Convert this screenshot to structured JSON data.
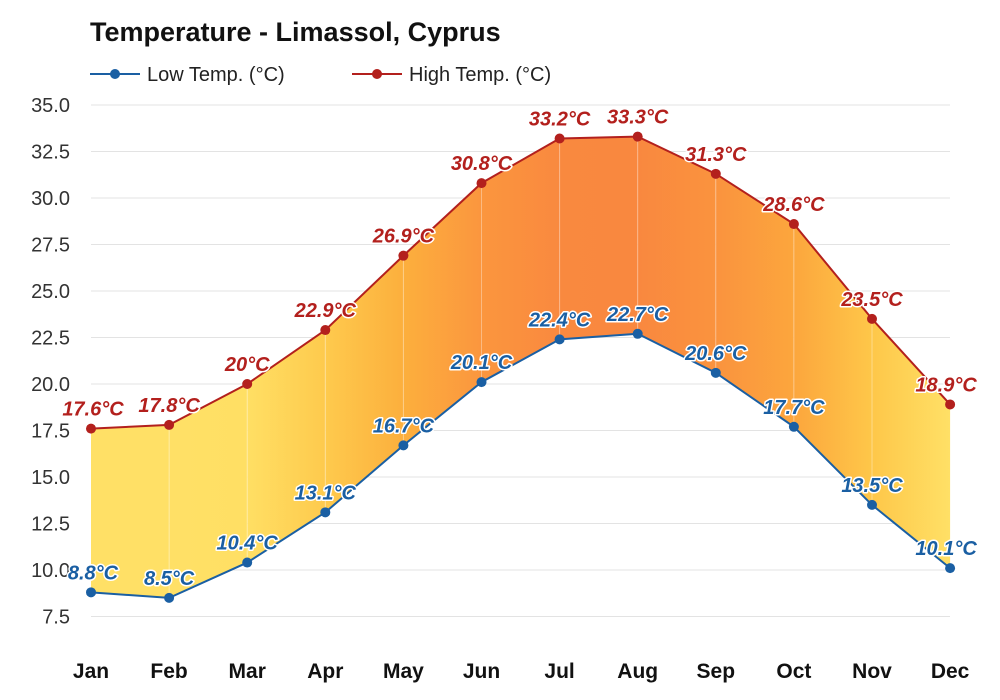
{
  "chart_data": {
    "type": "area",
    "title": "Temperature - Limassol, Cyprus",
    "categories": [
      "Jan",
      "Feb",
      "Mar",
      "Apr",
      "May",
      "Jun",
      "Jul",
      "Aug",
      "Sep",
      "Oct",
      "Nov",
      "Dec"
    ],
    "ylim": [
      6.5,
      35
    ],
    "yticks": [
      "7.5",
      "10.0",
      "12.5",
      "15.0",
      "17.5",
      "20.0",
      "22.5",
      "25.0",
      "27.5",
      "30.0",
      "32.5",
      "35.0"
    ],
    "grid": true,
    "legend_position": "top-left",
    "series": [
      {
        "name": "Low Temp. (°C)",
        "color": "#1a5fa3",
        "values": [
          8.8,
          8.5,
          10.4,
          13.1,
          16.7,
          20.1,
          22.4,
          22.7,
          20.6,
          17.7,
          13.5,
          10.1
        ],
        "labels": [
          "8.8°C",
          "8.5°C",
          "10.4°C",
          "13.1°C",
          "16.7°C",
          "20.1°C",
          "22.4°C",
          "22.7°C",
          "20.6°C",
          "17.7°C",
          "13.5°C",
          "10.1°C"
        ]
      },
      {
        "name": "High Temp. (°C)",
        "color": "#b3201d",
        "values": [
          17.6,
          17.8,
          20,
          22.9,
          26.9,
          30.8,
          33.2,
          33.3,
          31.3,
          28.6,
          23.5,
          18.9
        ],
        "labels": [
          "17.6°C",
          "17.8°C",
          "20°C",
          "22.9°C",
          "26.9°C",
          "30.8°C",
          "33.2°C",
          "33.3°C",
          "31.3°C",
          "28.6°C",
          "23.5°C",
          "18.9°C"
        ]
      }
    ]
  }
}
